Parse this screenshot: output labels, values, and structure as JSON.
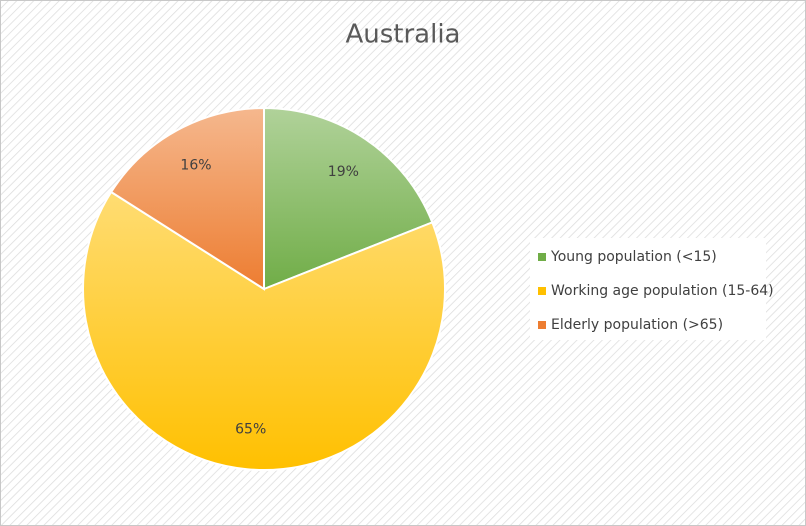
{
  "chart_data": {
    "type": "pie",
    "title": "Australia",
    "categories": [
      "Young population (<15)",
      "Working age population (15-64)",
      "Elderly population (>65)"
    ],
    "values": [
      19,
      65,
      16
    ],
    "value_labels": [
      "19%",
      "65%",
      "16%"
    ],
    "colors": [
      "#70ad47",
      "#ffc000",
      "#ed7d31"
    ],
    "legend": "right"
  }
}
